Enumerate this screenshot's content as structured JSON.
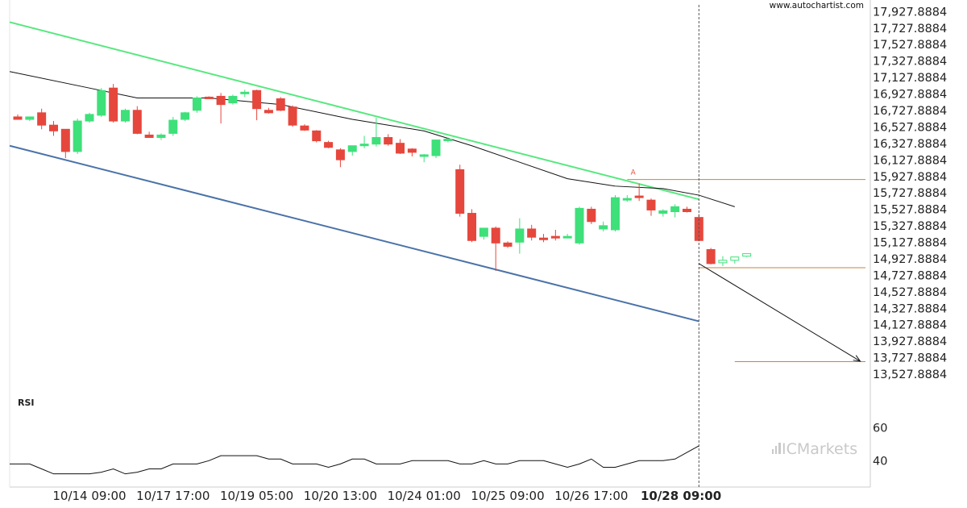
{
  "watermark": "www.autochartist.com",
  "brand": {
    "prefix": "IC",
    "name": "Markets"
  },
  "colors": {
    "bull": "#3ee07a",
    "bear": "#e6473d",
    "resistance": "#55e87e",
    "support": "#4a72a8",
    "moving_average": "#111111",
    "level": "#c8843f",
    "rsi": "#111111",
    "projection": "#111111"
  },
  "chart_data": {
    "type": "candlestick",
    "y_ticks": [
      "17,927.8884",
      "17,727.8884",
      "17,527.8884",
      "17,327.8884",
      "17,127.8884",
      "16,927.8884",
      "16,727.8884",
      "16,527.8884",
      "16,327.8884",
      "16,127.8884",
      "15,927.8884",
      "15,727.8884",
      "15,527.8884",
      "15,327.8884",
      "15,127.8884",
      "14,927.8884",
      "14,727.8884",
      "14,527.8884",
      "14,327.8884",
      "14,127.8884",
      "13,927.8884",
      "13,727.8884",
      "13,527.8884"
    ],
    "y_tick_values": [
      17927.8884,
      17727.8884,
      17527.8884,
      17327.8884,
      17127.8884,
      16927.8884,
      16727.8884,
      16527.8884,
      16327.8884,
      16127.8884,
      15927.8884,
      15727.8884,
      15527.8884,
      15327.8884,
      15127.8884,
      14927.8884,
      14727.8884,
      14527.8884,
      14327.8884,
      14127.8884,
      13927.8884,
      13727.8884,
      13527.8884
    ],
    "ylim": [
      13450,
      18000
    ],
    "x_ticks": [
      {
        "label": "10/14 09:00",
        "index": 6,
        "bold": false
      },
      {
        "label": "10/17 17:00",
        "index": 13,
        "bold": false
      },
      {
        "label": "10/19 05:00",
        "index": 20,
        "bold": false
      },
      {
        "label": "10/20 13:00",
        "index": 27,
        "bold": false
      },
      {
        "label": "10/24 01:00",
        "index": 34,
        "bold": false
      },
      {
        "label": "10/25 09:00",
        "index": 41,
        "bold": false
      },
      {
        "label": "10/26 17:00",
        "index": 48,
        "bold": false
      },
      {
        "label": "10/28 09:00",
        "index": 55.5,
        "bold": true
      }
    ],
    "candles": [
      [
        16650,
        16680,
        16620,
        16620
      ],
      [
        16620,
        16650,
        16600,
        16650
      ],
      [
        16700,
        16750,
        16500,
        16550
      ],
      [
        16550,
        16600,
        16420,
        16480
      ],
      [
        16500,
        16500,
        16150,
        16230
      ],
      [
        16230,
        16630,
        16200,
        16600
      ],
      [
        16600,
        16700,
        16580,
        16680
      ],
      [
        16670,
        17000,
        16650,
        16970
      ],
      [
        17000,
        17050,
        16580,
        16600
      ],
      [
        16600,
        16750,
        16580,
        16730
      ],
      [
        16730,
        16780,
        16440,
        16450
      ],
      [
        16430,
        16470,
        16400,
        16400
      ],
      [
        16400,
        16450,
        16370,
        16430
      ],
      [
        16450,
        16650,
        16420,
        16610
      ],
      [
        16620,
        16710,
        16600,
        16700
      ],
      [
        16730,
        16900,
        16700,
        16880
      ],
      [
        16890,
        16900,
        16870,
        16880
      ],
      [
        16900,
        16940,
        16570,
        16800
      ],
      [
        16820,
        16920,
        16800,
        16900
      ],
      [
        16950,
        16980,
        16890,
        16950
      ],
      [
        16970,
        16980,
        16610,
        16750
      ],
      [
        16730,
        16760,
        16690,
        16700
      ],
      [
        16870,
        16890,
        16720,
        16730
      ],
      [
        16770,
        16790,
        16530,
        16550
      ],
      [
        16540,
        16560,
        16480,
        16490
      ],
      [
        16480,
        16490,
        16340,
        16360
      ],
      [
        16340,
        16360,
        16270,
        16280
      ],
      [
        16250,
        16270,
        16040,
        16130
      ],
      [
        16230,
        16300,
        16180,
        16300
      ],
      [
        16300,
        16420,
        16270,
        16320
      ],
      [
        16320,
        16640,
        16290,
        16400
      ],
      [
        16400,
        16440,
        16300,
        16320
      ],
      [
        16330,
        16380,
        16200,
        16210
      ],
      [
        16260,
        16270,
        16170,
        16220
      ],
      [
        16190,
        16200,
        16100,
        16190
      ],
      [
        16180,
        16370,
        16150,
        16370
      ],
      [
        16370,
        16400,
        16340,
        16380
      ],
      [
        16010,
        16070,
        15440,
        15480
      ],
      [
        15480,
        15530,
        15130,
        15150
      ],
      [
        15200,
        15300,
        15160,
        15300
      ],
      [
        15300,
        15320,
        14780,
        15120
      ],
      [
        15120,
        15140,
        15060,
        15080
      ],
      [
        15130,
        15420,
        14990,
        15290
      ],
      [
        15290,
        15340,
        15150,
        15190
      ],
      [
        15180,
        15230,
        15130,
        15160
      ],
      [
        15200,
        15280,
        15150,
        15180
      ],
      [
        15200,
        15230,
        15180,
        15200
      ],
      [
        15120,
        15560,
        15100,
        15540
      ],
      [
        15530,
        15560,
        15350,
        15380
      ],
      [
        15290,
        15380,
        15260,
        15330
      ],
      [
        15280,
        15700,
        15260,
        15670
      ],
      [
        15650,
        15700,
        15620,
        15660
      ],
      [
        15690,
        15840,
        15630,
        15680
      ],
      [
        15640,
        15660,
        15450,
        15520
      ],
      [
        15480,
        15530,
        15440,
        15510
      ],
      [
        15500,
        15590,
        15430,
        15560
      ],
      [
        15530,
        15560,
        15490,
        15500
      ],
      [
        15430,
        15470,
        15140,
        15150
      ],
      [
        15040,
        15060,
        14860,
        14870
      ],
      [
        14880,
        14960,
        14840,
        14910
      ],
      [
        14910,
        14940,
        14870,
        14950
      ],
      [
        14960,
        14990,
        14950,
        14990
      ]
    ],
    "moving_average": [
      [
        0,
        17200
      ],
      [
        6,
        17000
      ],
      [
        10,
        16880
      ],
      [
        16,
        16880
      ],
      [
        22,
        16800
      ],
      [
        28,
        16620
      ],
      [
        34,
        16480
      ],
      [
        38,
        16300
      ],
      [
        42,
        16100
      ],
      [
        46,
        15900
      ],
      [
        50,
        15810
      ],
      [
        54,
        15780
      ],
      [
        57,
        15700
      ],
      [
        60,
        15560
      ]
    ],
    "resistance_line": [
      [
        0,
        17800
      ],
      [
        57,
        15650
      ]
    ],
    "support_line": [
      [
        0,
        16300
      ],
      [
        57,
        14170
      ]
    ],
    "level_high": {
      "from": 51,
      "to": 72,
      "value": 15890
    },
    "level_low": {
      "from": 57,
      "to": 72,
      "value": 14820
    },
    "level_target": {
      "from": 60,
      "to": 72,
      "value": 13680
    },
    "projection": [
      [
        57,
        14870
      ],
      [
        70.5,
        13685
      ]
    ],
    "marker": {
      "label": "A",
      "index": 51.5,
      "value": 15950
    },
    "vline_index": 57,
    "rsi": {
      "label": "RSI",
      "y_ticks": [
        "60",
        "40"
      ],
      "y_tick_values": [
        60,
        40
      ],
      "ylim": [
        24,
        70
      ],
      "values": [
        38,
        38,
        35,
        32,
        32,
        32,
        32,
        33,
        35,
        32,
        33,
        35,
        35,
        38,
        38,
        38,
        40,
        43,
        43,
        43,
        43,
        41,
        41,
        38,
        38,
        38,
        36,
        38,
        41,
        41,
        38,
        38,
        38,
        40,
        40,
        40,
        40,
        38,
        38,
        40,
        38,
        38,
        40,
        40,
        40,
        38,
        36,
        38,
        41,
        36,
        36,
        38,
        40,
        40,
        40,
        41,
        45,
        49
      ]
    }
  }
}
